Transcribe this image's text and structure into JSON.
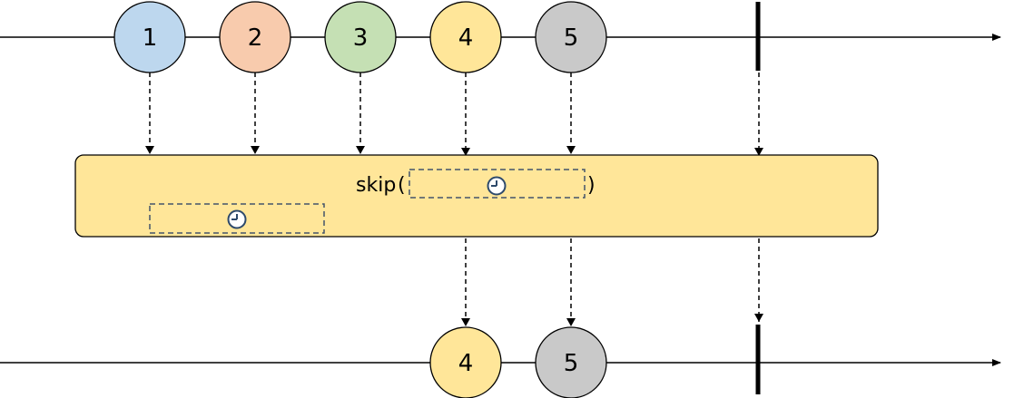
{
  "diagram": {
    "operator": {
      "name": "skip",
      "open_paren": "(",
      "close_paren": ")",
      "argument_icon": "clock-icon",
      "window_icon": "clock-icon"
    },
    "input_stream": {
      "marbles": [
        {
          "label": "1",
          "color": "#bdd7ee"
        },
        {
          "label": "2",
          "color": "#f8cbad"
        },
        {
          "label": "3",
          "color": "#c5e0b4"
        },
        {
          "label": "4",
          "color": "#ffe699"
        },
        {
          "label": "5",
          "color": "#c9c9c9"
        }
      ],
      "completes": true
    },
    "output_stream": {
      "marbles": [
        {
          "label": "4",
          "color": "#ffe699"
        },
        {
          "label": "5",
          "color": "#c9c9c9"
        }
      ],
      "completes": true
    },
    "colors": {
      "operator_fill": "#ffe699",
      "dashed_box_stroke": "#44546a",
      "line": "#000000"
    }
  }
}
